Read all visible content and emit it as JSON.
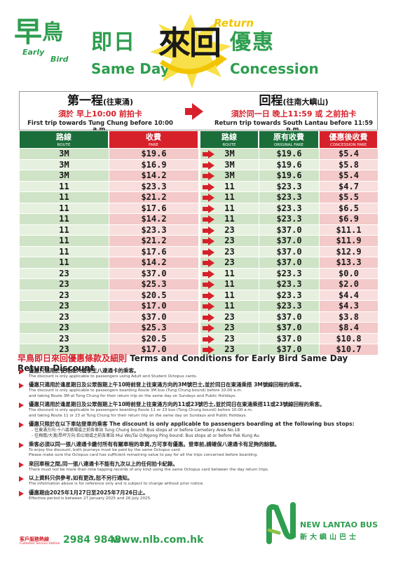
{
  "header": {
    "logo_zh_1": "早",
    "logo_zh_2": "鳥",
    "logo_en_1": "Early",
    "logo_en_2": "Bird",
    "title_zh_left": "即日",
    "title_en_left": "Same Day",
    "title_center_zh": "來回",
    "title_center_en": "Return",
    "title_zh_right": "優惠",
    "title_en_right": "Concession"
  },
  "trips": {
    "first": {
      "title": "第一程",
      "title_sub": "(往東涌)",
      "condition": "須於 早上10:00 前拍卡",
      "en": "First trip towards Tung Chung before 10:00 a.m."
    },
    "return": {
      "title": "回程",
      "title_sub": "(往南大嶼山)",
      "condition": "須於同一日 晚上11:59 或 之前拍卡",
      "en": "Return trip towards South Lantau before 11:59 p.m."
    }
  },
  "table": {
    "headers": {
      "route_zh": "路線",
      "route_en": "ROUTE",
      "fare_zh": "收費",
      "fare_en": "FARE",
      "route2_zh": "路線",
      "route2_en": "ROUTE",
      "orig_zh": "原有收費",
      "orig_en": "ORIGINAL FARE",
      "conc_zh": "優惠後收費",
      "conc_en": "CONCESSION FARE"
    },
    "rows": [
      {
        "r1": "3M",
        "f1": "$19.6",
        "r2": "3M",
        "of": "$19.6",
        "cf": "$5.4"
      },
      {
        "r1": "3M",
        "f1": "$16.9",
        "r2": "3M",
        "of": "$19.6",
        "cf": "$5.8"
      },
      {
        "r1": "3M",
        "f1": "$14.2",
        "r2": "3M",
        "of": "$19.6",
        "cf": "$5.4"
      },
      {
        "r1": "11",
        "f1": "$23.3",
        "r2": "11",
        "of": "$23.3",
        "cf": "$4.7"
      },
      {
        "r1": "11",
        "f1": "$21.2",
        "r2": "11",
        "of": "$23.3",
        "cf": "$5.5"
      },
      {
        "r1": "11",
        "f1": "$17.6",
        "r2": "11",
        "of": "$23.3",
        "cf": "$6.5"
      },
      {
        "r1": "11",
        "f1": "$14.2",
        "r2": "11",
        "of": "$23.3",
        "cf": "$6.9"
      },
      {
        "r1": "11",
        "f1": "$23.3",
        "r2": "23",
        "of": "$37.0",
        "cf": "$11.1"
      },
      {
        "r1": "11",
        "f1": "$21.2",
        "r2": "23",
        "of": "$37.0",
        "cf": "$11.9"
      },
      {
        "r1": "11",
        "f1": "$17.6",
        "r2": "23",
        "of": "$37.0",
        "cf": "$12.9"
      },
      {
        "r1": "11",
        "f1": "$14.2",
        "r2": "23",
        "of": "$37.0",
        "cf": "$13.3"
      },
      {
        "r1": "23",
        "f1": "$37.0",
        "r2": "11",
        "of": "$23.3",
        "cf": "$0.0"
      },
      {
        "r1": "23",
        "f1": "$25.3",
        "r2": "11",
        "of": "$23.3",
        "cf": "$2.0"
      },
      {
        "r1": "23",
        "f1": "$20.5",
        "r2": "11",
        "of": "$23.3",
        "cf": "$4.4"
      },
      {
        "r1": "23",
        "f1": "$17.0",
        "r2": "11",
        "of": "$23.3",
        "cf": "$4.3"
      },
      {
        "r1": "23",
        "f1": "$37.0",
        "r2": "23",
        "of": "$37.0",
        "cf": "$3.8"
      },
      {
        "r1": "23",
        "f1": "$25.3",
        "r2": "23",
        "of": "$37.0",
        "cf": "$8.4"
      },
      {
        "r1": "23",
        "f1": "$20.5",
        "r2": "23",
        "of": "$37.0",
        "cf": "$10.8"
      },
      {
        "r1": "23",
        "f1": "$17.0",
        "r2": "23",
        "of": "$37.0",
        "cf": "$10.7"
      }
    ]
  },
  "terms": {
    "title_zh": "早鳥即日來回優惠條款及細則",
    "title_en": "Terms and Conditions for Early Bird Same Day Return Discount",
    "items": [
      {
        "zh": "優惠只適用於使用成人或學生八達通卡的乘客。",
        "en": "The discount is only applicable to passengers using Adult and Student Octopus cards."
      },
      {
        "zh": "優惠只適用於逢星期日及公眾假期上午10時前登上往東涌方向的3M號巴士,並於同日在東涌乘搭 3M號線回程的乘客。",
        "en": "The discount is only applicable to passengers boarding Route 3M bus (Tung Chung bound) before 10:00 a.m.",
        "en2": "and taking Route 3M at Tung Chung for their return trip on the same day on Sundays and Public Holidays."
      },
      {
        "zh": "優惠只適用於逢星期日及公眾假期上午10時前登上往東涌方向的11或23號巴士,並於同日在東涌乘搭11或23號線回程的乘客。",
        "en": "The discount is only applicable to passengers boarding Route 11 or 23 bus (Tung Chung bound) before 10:00 a.m.",
        "en2": "and taking Route 11 or 23 at Tung Chung for their return trip on the same day on Sundays and Public Holidays."
      },
      {
        "zh": "優惠只限於在以下車站登車的乘客",
        "zh_en": "The discount is only applicable to passengers boarding at the following bus stops:",
        "sub1": "- 往東涌方向:十八區墳場或之前各車站 Tung Chung bound: Bus stops at or before Cemetery Area No.18",
        "sub2": "- 往梅窩/大澳/昂坪方向:伯公坳或之前各車站 Mui Wo/Tai O/Ngong Ping bound: Bus stops at or before Pak Kung Au"
      },
      {
        "zh": "乘客必須以同一張八達通卡繳付所有有關車程的車資,方可享有優惠。登車前,請確保八達通卡有足夠的餘額。",
        "en": "To enjoy the discount, both journeys must be paid by the same Octopus card.",
        "en2": "Please make sure the Octopus card has sufficient remaining value to pay for all the trips concerned before boarding."
      },
      {
        "zh": "來回車程之間,同一張八達通卡不能有九次以上的任何拍卡紀錄。",
        "en": "There must not be more than nine tapping records of any kind using the same Octopus card between the day return trips."
      },
      {
        "zh": "以上資料只供參考,如有更改,恕不另行通知。",
        "en": "The information above is for reference only and is subject to change without prior notice."
      },
      {
        "zh": "優惠期由2025年1月27日至2025年7月26日止。",
        "en": "Effective period is between 27 January 2025 and 26 July 2025."
      }
    ]
  },
  "footer": {
    "hotline_zh": "客戶服務熱線",
    "hotline_en": "Customer Service Hotline",
    "hotline_number": "2984 9848",
    "website": "www.nlb.com.hk",
    "brand_en": "NEW LANTAO BUS",
    "brand_zh": "新大嶼山巴士"
  },
  "colors": {
    "green": "#2e9e4f",
    "dark_green": "#1b6e3a",
    "red": "#d6212b",
    "yellow": "#f2c500"
  }
}
